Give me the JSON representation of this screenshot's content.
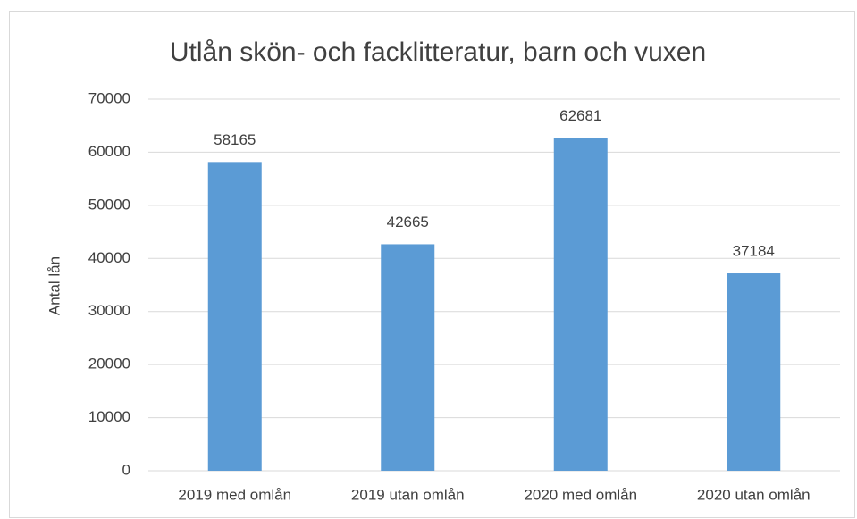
{
  "chart_data": {
    "type": "bar",
    "title": "Utlån skön- och facklitteratur, barn och vuxen",
    "ylabel": "Antal lån",
    "categories": [
      "2019 med omlån",
      "2019 utan omlån",
      "2020 med omlån",
      "2020 utan omlån"
    ],
    "values": [
      58165,
      42665,
      62681,
      37184
    ],
    "color": "#5b9bd5",
    "ylim": [
      0,
      70000
    ],
    "yticks": [
      0,
      10000,
      20000,
      30000,
      40000,
      50000,
      60000,
      70000
    ],
    "grid": true
  }
}
